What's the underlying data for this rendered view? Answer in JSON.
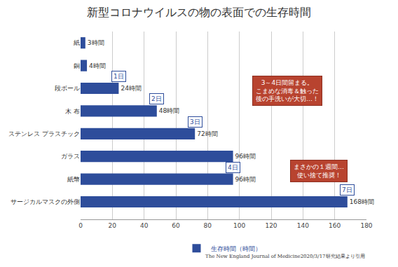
{
  "chart_data": {
    "type": "bar",
    "orientation": "horizontal",
    "title": "新型コロナウイルスの物の表面での生存時間",
    "categories": [
      "紙",
      "銅",
      "段ボール",
      "木 布",
      "ステンレス プラスチック",
      "ガラス",
      "紙幣",
      "サージカルマスクの外側"
    ],
    "series": [
      {
        "name": "生存時間（時間）",
        "color": "#2e4d9b",
        "values": [
          3,
          4,
          24,
          48,
          72,
          96,
          96,
          168
        ],
        "value_labels": [
          "3時間",
          "4時間",
          "24時間",
          "48時間",
          "72時間",
          "96時間",
          "96時間",
          "168時間"
        ]
      }
    ],
    "xlim": [
      0,
      180
    ],
    "xticks": [
      0,
      20,
      40,
      60,
      80,
      100,
      120,
      140,
      160,
      180
    ],
    "grid": true,
    "legend": "bottom",
    "data_labels": true,
    "annotations": [
      {
        "text": "1日",
        "category": "段ボール"
      },
      {
        "text": "2日",
        "category": "木 布"
      },
      {
        "text": "3日",
        "category": "ステンレス プラスチック"
      },
      {
        "text": "4日",
        "category": "紙幣"
      },
      {
        "text": "7日",
        "category": "サージカルマスクの外側"
      }
    ],
    "callouts": [
      "3～4日間留まる。\nこまめな消毒＆触った\n後の手洗いが大切…！",
      "まさかの１週間…\n使い捨て推奨！"
    ],
    "source": "The New England Journal of Medicine2020/3/17研究結果より引用"
  }
}
